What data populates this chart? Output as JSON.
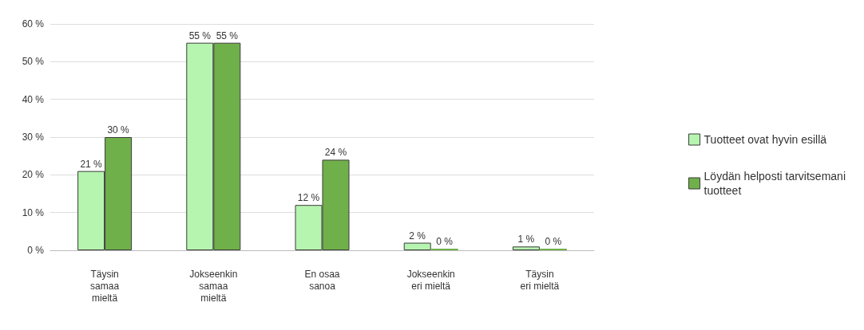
{
  "chart_data": {
    "type": "bar",
    "categories": [
      "Täysin\nsamaa\nmieltä",
      "Jokseenkin\nsamaa\nmieltä",
      "En osaa\nsanoa",
      "Jokseenkin\neri mieltä",
      "Täysin\neri mieltä"
    ],
    "series": [
      {
        "name": "Tuotteet ovat hyvin esillä",
        "color": "#b6f5b0",
        "values": [
          21,
          55,
          12,
          2,
          1
        ],
        "value_labels": [
          "21 %",
          "55 %",
          "12 %",
          "2 %",
          "1 %"
        ]
      },
      {
        "name": "Löydän helposti tarvitsemani\ntuotteet",
        "color": "#70b04a",
        "values": [
          30,
          55,
          24,
          0,
          0
        ],
        "value_labels": [
          "30 %",
          "55 %",
          "24 %",
          "0 %",
          "0 %"
        ]
      }
    ],
    "ylim": [
      0,
      60
    ],
    "yticks": [
      {
        "value": 0,
        "label": "0 %"
      },
      {
        "value": 10,
        "label": "10 %"
      },
      {
        "value": 20,
        "label": "20 %"
      },
      {
        "value": 30,
        "label": "30 %"
      },
      {
        "value": 40,
        "label": "40 %"
      },
      {
        "value": 50,
        "label": "50 %"
      },
      {
        "value": 60,
        "label": "60 %"
      }
    ],
    "grid": "y",
    "legend": "right"
  }
}
